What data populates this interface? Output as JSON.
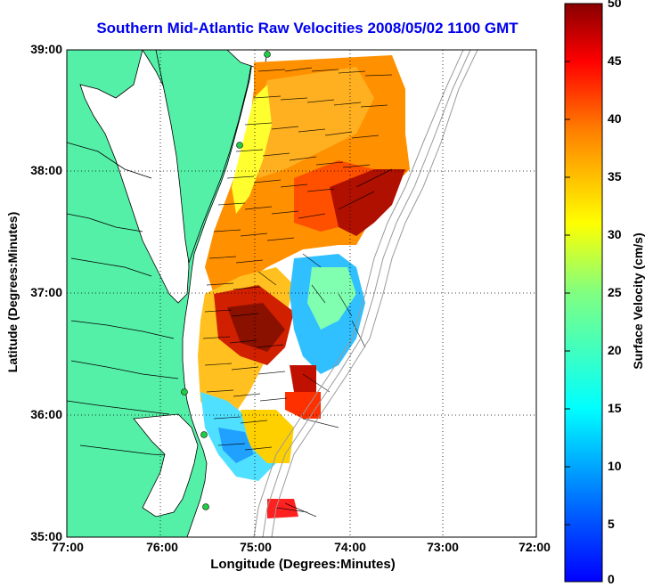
{
  "title": "Southern Mid-Atlantic Raw Velocities 2008/05/02 1100 GMT",
  "xlabel": "Longitude (Degrees:Minutes)",
  "ylabel": "Latitude (Degrees:Minutes)",
  "colorbar_label": "Surface Velocity (cm/s)",
  "map": {
    "x_ticks": [
      "77:00",
      "76:00",
      "75:00",
      "74:00",
      "73:00",
      "72:00"
    ],
    "y_ticks": [
      "39:00",
      "38:00",
      "37:00",
      "36:00",
      "35:00"
    ],
    "lon_range": [
      -77,
      -72
    ],
    "lat_range": [
      35,
      39
    ],
    "grid": true,
    "colors": {
      "land": "#55f0a8",
      "water": "#ffffff",
      "bathymetry": "#9a9a9a",
      "site_marker": "#22cc44",
      "title": "#0000ee"
    }
  },
  "colorbar": {
    "min": 0,
    "max": 50,
    "ticks": [
      "50",
      "45",
      "40",
      "35",
      "30",
      "25",
      "20",
      "15",
      "10",
      "5",
      "0"
    ],
    "colormap": "jet"
  }
}
